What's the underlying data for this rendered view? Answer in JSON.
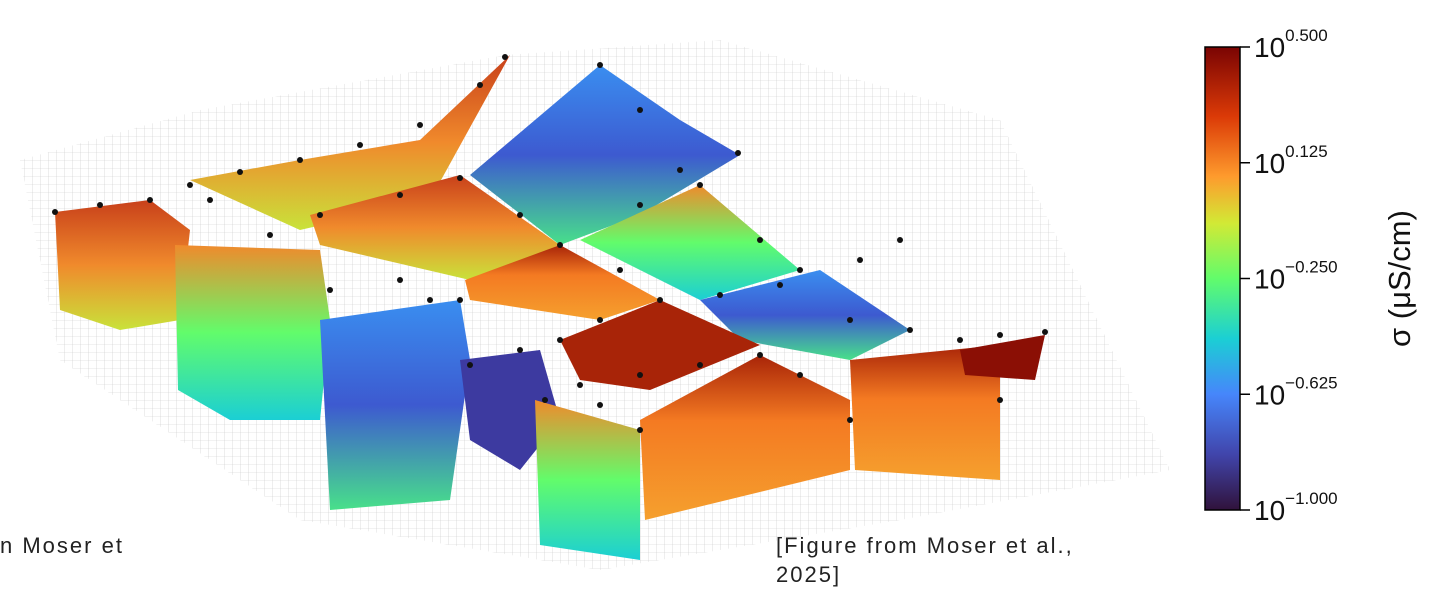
{
  "chart_data": {
    "type": "colorbar",
    "label": "σ (μS/cm)",
    "clim": [
      -1.0,
      0.5
    ],
    "ticks": [
      {
        "value": 0.5,
        "base": "10",
        "exponent": "0.500"
      },
      {
        "value": 0.125,
        "base": "10",
        "exponent": "0.125"
      },
      {
        "value": -0.25,
        "base": "10",
        "exponent": "−0.250"
      },
      {
        "value": -0.625,
        "base": "10",
        "exponent": "−0.625"
      },
      {
        "value": -1.0,
        "base": "10",
        "exponent": "−1.000"
      }
    ]
  },
  "captions": {
    "left": "n Moser et",
    "right_line1": "[Figure from Moser et al.,",
    "right_line2": "2025]"
  }
}
